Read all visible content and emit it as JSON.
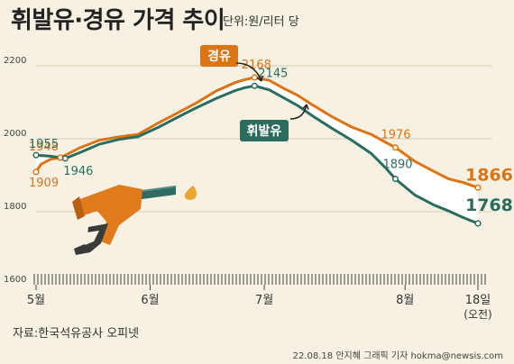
{
  "chart_data": {
    "type": "line",
    "title": "휘발유·경유 가격 추이",
    "unit": "단위:원/리터 당",
    "source": "자료:한국석유공사 오피넷",
    "credit": "22.08.18 안지혜 그래픽 기자 hokma@newsis.com",
    "y_ticks": [
      1600,
      1800,
      2000,
      2200
    ],
    "ylim": [
      1600,
      2200
    ],
    "x_ticks": [
      "5월",
      "6월",
      "7월",
      "8월",
      "18일"
    ],
    "x_tick_sublabel": "(오전)",
    "colors": {
      "경유": "#dd7413",
      "휘발유": "#2a6d5f",
      "text": "#333333"
    },
    "series": [
      {
        "name": "경유",
        "points": [
          {
            "x": 1,
            "y": 1909
          },
          {
            "x": 2,
            "y": 1930
          },
          {
            "x": 4,
            "y": 1944
          },
          {
            "x": 6,
            "y": 1948
          },
          {
            "x": 10,
            "y": 1975
          },
          {
            "x": 14,
            "y": 1996
          },
          {
            "x": 18,
            "y": 2005
          },
          {
            "x": 22,
            "y": 2012
          },
          {
            "x": 26,
            "y": 2042
          },
          {
            "x": 30,
            "y": 2070
          },
          {
            "x": 34,
            "y": 2098
          },
          {
            "x": 38,
            "y": 2130
          },
          {
            "x": 42,
            "y": 2154
          },
          {
            "x": 44,
            "y": 2162
          },
          {
            "x": 46,
            "y": 2168
          },
          {
            "x": 49,
            "y": 2160
          },
          {
            "x": 52,
            "y": 2138
          },
          {
            "x": 55,
            "y": 2118
          },
          {
            "x": 58,
            "y": 2092
          },
          {
            "x": 62,
            "y": 2060
          },
          {
            "x": 66,
            "y": 2032
          },
          {
            "x": 70,
            "y": 2012
          },
          {
            "x": 73,
            "y": 1990
          },
          {
            "x": 75,
            "y": 1976
          },
          {
            "x": 79,
            "y": 1938
          },
          {
            "x": 83,
            "y": 1910
          },
          {
            "x": 86,
            "y": 1890
          },
          {
            "x": 89,
            "y": 1880
          },
          {
            "x": 92,
            "y": 1866
          }
        ],
        "labels": [
          {
            "x": 1,
            "y": 1909,
            "text": "1909"
          },
          {
            "x": 6,
            "y": 1948,
            "text": "1948"
          },
          {
            "x": 46,
            "y": 2168,
            "text": "2168"
          },
          {
            "x": 75,
            "y": 1976,
            "text": "1976"
          },
          {
            "x": 92,
            "y": 1866,
            "text": "1866"
          }
        ]
      },
      {
        "name": "휘발유",
        "points": [
          {
            "x": 1,
            "y": 1955
          },
          {
            "x": 4,
            "y": 1952
          },
          {
            "x": 7,
            "y": 1946
          },
          {
            "x": 10,
            "y": 1962
          },
          {
            "x": 14,
            "y": 1985
          },
          {
            "x": 18,
            "y": 1998
          },
          {
            "x": 22,
            "y": 2006
          },
          {
            "x": 26,
            "y": 2030
          },
          {
            "x": 30,
            "y": 2058
          },
          {
            "x": 34,
            "y": 2085
          },
          {
            "x": 38,
            "y": 2110
          },
          {
            "x": 42,
            "y": 2132
          },
          {
            "x": 44,
            "y": 2140
          },
          {
            "x": 46,
            "y": 2145
          },
          {
            "x": 49,
            "y": 2134
          },
          {
            "x": 52,
            "y": 2112
          },
          {
            "x": 55,
            "y": 2090
          },
          {
            "x": 58,
            "y": 2062
          },
          {
            "x": 62,
            "y": 2028
          },
          {
            "x": 66,
            "y": 1996
          },
          {
            "x": 70,
            "y": 1960
          },
          {
            "x": 73,
            "y": 1920
          },
          {
            "x": 75,
            "y": 1890
          },
          {
            "x": 79,
            "y": 1846
          },
          {
            "x": 83,
            "y": 1818
          },
          {
            "x": 86,
            "y": 1802
          },
          {
            "x": 89,
            "y": 1784
          },
          {
            "x": 92,
            "y": 1768
          }
        ],
        "labels": [
          {
            "x": 1,
            "y": 1955,
            "text": "1955"
          },
          {
            "x": 7,
            "y": 1946,
            "text": "1946"
          },
          {
            "x": 46,
            "y": 2145,
            "text": "2145"
          },
          {
            "x": 75,
            "y": 1890,
            "text": "1890"
          },
          {
            "x": 92,
            "y": 1768,
            "text": "1768"
          }
        ]
      }
    ]
  }
}
